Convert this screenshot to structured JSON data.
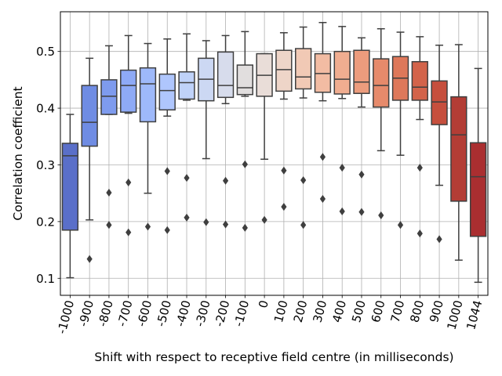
{
  "chart_data": {
    "type": "box",
    "title": "",
    "xlabel": "Shift with respect to receptive field centre (in milliseconds)",
    "ylabel": "Correlation coefficient",
    "ylim": [
      0.07,
      0.57
    ],
    "yticks": [
      0.1,
      0.2,
      0.3,
      0.4,
      0.5
    ],
    "ytick_labels": [
      "0.1",
      "0.2",
      "0.3",
      "0.4",
      "0.5"
    ],
    "grid": true,
    "palette": "coolwarm",
    "categories": [
      "-1000",
      "-900",
      "-800",
      "-700",
      "-600",
      "-500",
      "-400",
      "-300",
      "-200",
      "-100",
      "0",
      "100",
      "200",
      "300",
      "400",
      "500",
      "600",
      "700",
      "800",
      "900",
      "1000",
      "1044"
    ],
    "colors": [
      "#5a6fc9",
      "#6f8ce3",
      "#7e9bee",
      "#8eaaf6",
      "#9eb9fa",
      "#afc6fd",
      "#bfd2f9",
      "#ccd8f3",
      "#d7dcec",
      "#e1dede",
      "#e9ddd8",
      "#eed5c8",
      "#f1c9b5",
      "#f2bca3",
      "#f0ad90",
      "#ec9c7d",
      "#e68a6b",
      "#de785a",
      "#d3634a",
      "#c64f3d",
      "#b33d35",
      "#aa2e30"
    ],
    "boxes": [
      {
        "whislo": 0.101,
        "q1": 0.185,
        "med": 0.316,
        "q3": 0.338,
        "whishi": 0.389,
        "fliers": []
      },
      {
        "whislo": 0.203,
        "q1": 0.333,
        "med": 0.375,
        "q3": 0.44,
        "whishi": 0.488,
        "fliers": [
          0.134
        ]
      },
      {
        "whislo": 0.389,
        "q1": 0.389,
        "med": 0.421,
        "q3": 0.45,
        "whishi": 0.51,
        "fliers": [
          0.251,
          0.194
        ]
      },
      {
        "whislo": 0.391,
        "q1": 0.393,
        "med": 0.44,
        "q3": 0.467,
        "whishi": 0.528,
        "fliers": [
          0.269,
          0.181
        ]
      },
      {
        "whislo": 0.25,
        "q1": 0.376,
        "med": 0.443,
        "q3": 0.471,
        "whishi": 0.514,
        "fliers": [
          0.191
        ]
      },
      {
        "whislo": 0.386,
        "q1": 0.397,
        "med": 0.431,
        "q3": 0.46,
        "whishi": 0.522,
        "fliers": [
          0.289,
          0.185
        ]
      },
      {
        "whislo": 0.414,
        "q1": 0.416,
        "med": 0.445,
        "q3": 0.464,
        "whishi": 0.531,
        "fliers": [
          0.277,
          0.207
        ]
      },
      {
        "whislo": 0.311,
        "q1": 0.413,
        "med": 0.451,
        "q3": 0.488,
        "whishi": 0.519,
        "fliers": [
          0.199
        ]
      },
      {
        "whislo": 0.408,
        "q1": 0.419,
        "med": 0.44,
        "q3": 0.499,
        "whishi": 0.528,
        "fliers": [
          0.272,
          0.195
        ]
      },
      {
        "whislo": 0.421,
        "q1": 0.424,
        "med": 0.436,
        "q3": 0.476,
        "whishi": 0.535,
        "fliers": [
          0.301,
          0.189
        ]
      },
      {
        "whislo": 0.31,
        "q1": 0.421,
        "med": 0.458,
        "q3": 0.496,
        "whishi": 0.496,
        "fliers": [
          0.203
        ]
      },
      {
        "whislo": 0.416,
        "q1": 0.43,
        "med": 0.468,
        "q3": 0.502,
        "whishi": 0.533,
        "fliers": [
          0.29,
          0.226
        ]
      },
      {
        "whislo": 0.418,
        "q1": 0.434,
        "med": 0.455,
        "q3": 0.505,
        "whishi": 0.543,
        "fliers": [
          0.273,
          0.194
        ]
      },
      {
        "whislo": 0.413,
        "q1": 0.428,
        "med": 0.461,
        "q3": 0.496,
        "whishi": 0.551,
        "fliers": [
          0.314,
          0.24
        ]
      },
      {
        "whislo": 0.417,
        "q1": 0.425,
        "med": 0.451,
        "q3": 0.5,
        "whishi": 0.544,
        "fliers": [
          0.295,
          0.218
        ]
      },
      {
        "whislo": 0.402,
        "q1": 0.426,
        "med": 0.446,
        "q3": 0.502,
        "whishi": 0.524,
        "fliers": [
          0.283,
          0.217
        ]
      },
      {
        "whislo": 0.325,
        "q1": 0.402,
        "med": 0.44,
        "q3": 0.487,
        "whishi": 0.54,
        "fliers": [
          0.211
        ]
      },
      {
        "whislo": 0.317,
        "q1": 0.414,
        "med": 0.453,
        "q3": 0.491,
        "whishi": 0.534,
        "fliers": [
          0.194
        ]
      },
      {
        "whislo": 0.38,
        "q1": 0.414,
        "med": 0.437,
        "q3": 0.482,
        "whishi": 0.526,
        "fliers": [
          0.295,
          0.179
        ]
      },
      {
        "whislo": 0.264,
        "q1": 0.371,
        "med": 0.411,
        "q3": 0.448,
        "whishi": 0.511,
        "fliers": [
          0.169
        ]
      },
      {
        "whislo": 0.132,
        "q1": 0.236,
        "med": 0.353,
        "q3": 0.42,
        "whishi": 0.512,
        "fliers": []
      },
      {
        "whislo": 0.093,
        "q1": 0.174,
        "med": 0.279,
        "q3": 0.339,
        "whishi": 0.47,
        "fliers": []
      }
    ]
  }
}
